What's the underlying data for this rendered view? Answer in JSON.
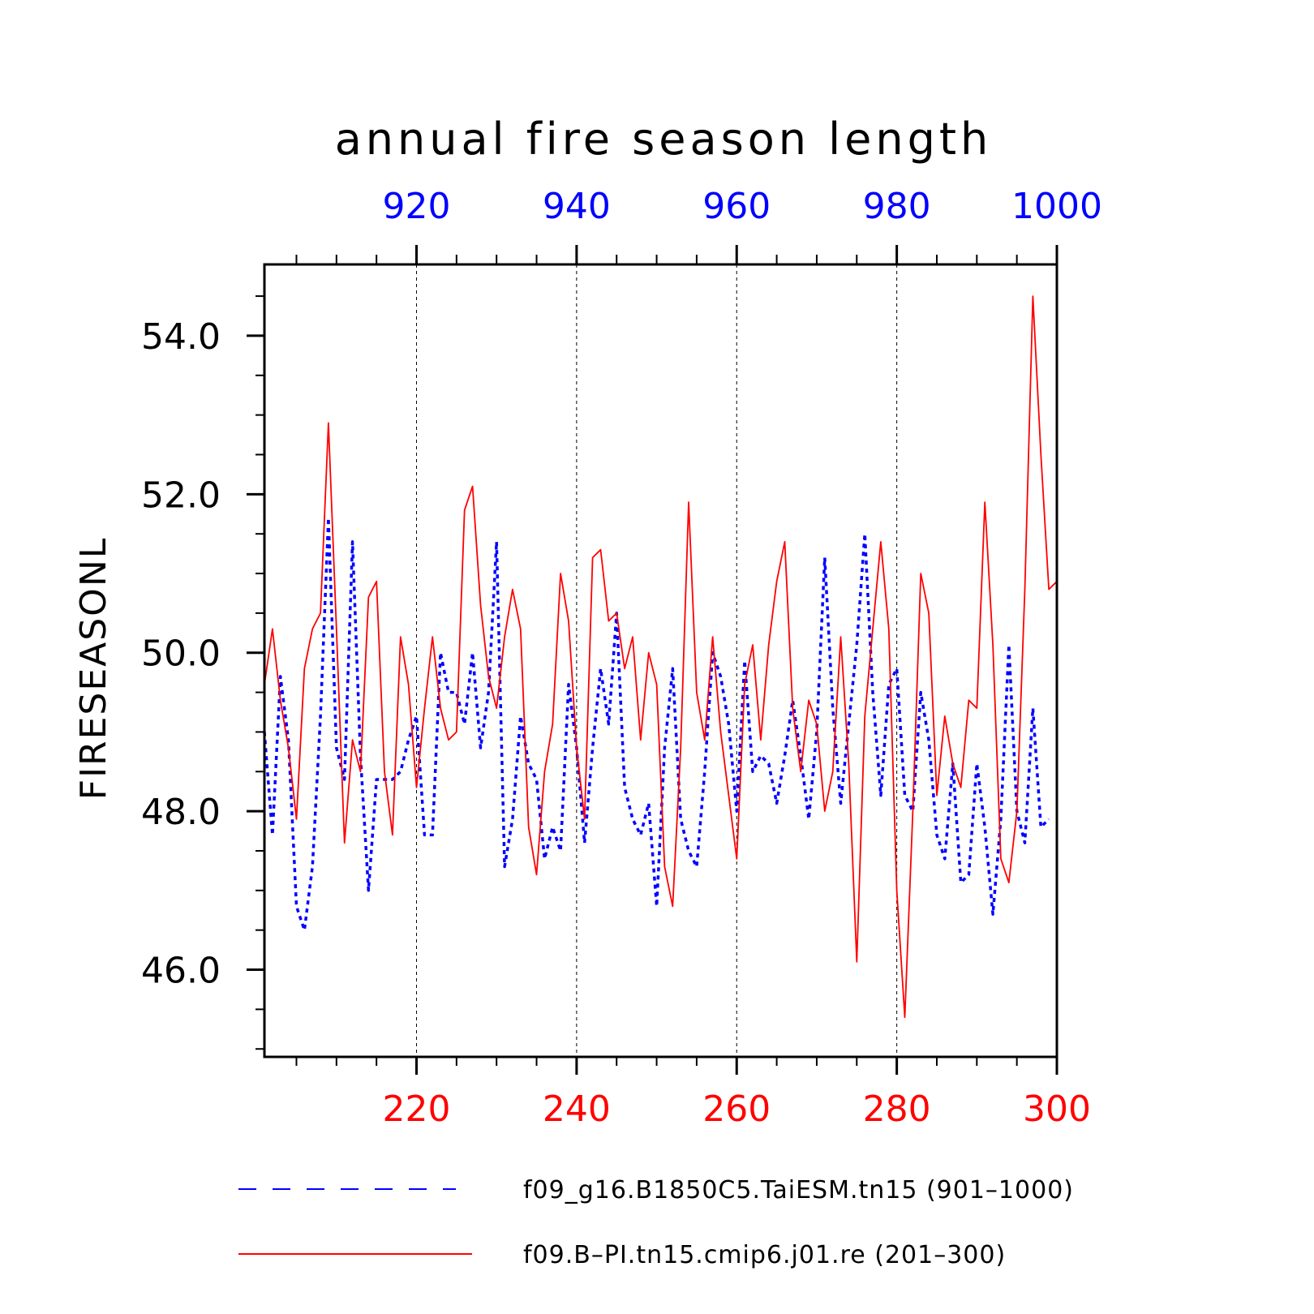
{
  "chart_data": {
    "type": "line",
    "title": "annual fire season length",
    "ylabel": "FIRESEASONL",
    "xlabel": "",
    "ylim": [
      44.9,
      54.9
    ],
    "yticks": [
      46.0,
      48.0,
      50.0,
      52.0,
      54.0
    ],
    "ytick_labels": [
      "46.0",
      "48.0",
      "50.0",
      "52.0",
      "54.0"
    ],
    "bottom_axis": {
      "color": "#ff0000",
      "range": [
        201,
        300
      ],
      "ticks": [
        220,
        240,
        260,
        280,
        300
      ],
      "tick_labels": [
        "220",
        "240",
        "260",
        "280",
        "300"
      ]
    },
    "top_axis": {
      "color": "#0000ff",
      "range": [
        901,
        1000
      ],
      "ticks": [
        920,
        940,
        960,
        980,
        1000
      ],
      "tick_labels": [
        "920",
        "940",
        "960",
        "980",
        "1000"
      ]
    },
    "grid": "vertical dashed at major ticks",
    "legend_position": "bottom",
    "series": [
      {
        "name": "f09_g16.B1850C5.TaiESM.tn15 (901–1000)",
        "axis": "top",
        "color": "#0000ff",
        "style": "dashed",
        "x_start": 901,
        "values": [
          49.0,
          47.7,
          49.7,
          48.9,
          46.8,
          46.5,
          47.3,
          49.2,
          51.7,
          48.8,
          48.4,
          51.4,
          48.7,
          47.0,
          48.4,
          48.4,
          48.4,
          48.5,
          48.9,
          49.2,
          47.7,
          47.7,
          50.0,
          49.5,
          49.5,
          49.1,
          50.0,
          48.8,
          49.5,
          51.4,
          47.3,
          47.9,
          49.2,
          48.6,
          48.4,
          47.4,
          47.8,
          47.5,
          49.6,
          48.8,
          47.6,
          48.8,
          49.8,
          49.1,
          50.5,
          48.3,
          47.9,
          47.7,
          48.1,
          46.8,
          48.8,
          49.8,
          47.9,
          47.5,
          47.3,
          48.5,
          50.0,
          49.7,
          49.1,
          48.0,
          49.9,
          48.5,
          48.7,
          48.6,
          48.1,
          48.7,
          49.4,
          48.7,
          47.9,
          49.0,
          51.2,
          49.3,
          48.1,
          49.1,
          50.1,
          51.5,
          49.5,
          48.2,
          49.6,
          49.8,
          48.2,
          48.0,
          49.5,
          48.9,
          47.7,
          47.4,
          48.6,
          47.1,
          47.2,
          48.6,
          47.8,
          46.7,
          47.9,
          50.1,
          48.0,
          47.6,
          49.3,
          47.8,
          47.9
        ]
      },
      {
        "name": "f09.B–PI.tn15.cmip6.j01.re (201–300)",
        "axis": "bottom",
        "color": "#ff0000",
        "style": "solid",
        "x_start": 201,
        "values": [
          49.6,
          50.3,
          49.4,
          48.8,
          47.9,
          49.8,
          50.3,
          50.5,
          52.9,
          50.3,
          47.6,
          48.9,
          48.5,
          50.7,
          50.9,
          48.5,
          47.7,
          50.2,
          49.6,
          48.3,
          49.3,
          50.2,
          49.3,
          48.9,
          49.0,
          51.8,
          52.1,
          50.6,
          49.7,
          49.3,
          50.2,
          50.8,
          50.3,
          47.8,
          47.2,
          48.5,
          49.1,
          51.0,
          50.4,
          48.8,
          47.9,
          51.2,
          51.3,
          50.4,
          50.5,
          49.8,
          50.2,
          48.9,
          50.0,
          49.6,
          47.3,
          46.8,
          48.8,
          51.9,
          49.5,
          48.9,
          50.2,
          49.0,
          48.2,
          47.4,
          49.6,
          50.1,
          48.9,
          50.1,
          50.9,
          51.4,
          49.3,
          48.5,
          49.4,
          49.1,
          48.0,
          48.5,
          50.2,
          48.6,
          46.1,
          49.2,
          50.3,
          51.4,
          50.3,
          47.0,
          45.4,
          48.0,
          51.0,
          50.5,
          48.2,
          49.2,
          48.6,
          48.3,
          49.4,
          49.3,
          51.9,
          50.1,
          47.4,
          47.1,
          48.0,
          50.8,
          54.5,
          52.5,
          50.8,
          50.9
        ]
      }
    ],
    "legend": [
      {
        "label_key": 0,
        "text": "f09_g16.B1850C5.TaiESM.tn15 (901–1000)"
      },
      {
        "label_key": 1,
        "text": "f09.B–PI.tn15.cmip6.j01.re (201–300)"
      }
    ]
  }
}
